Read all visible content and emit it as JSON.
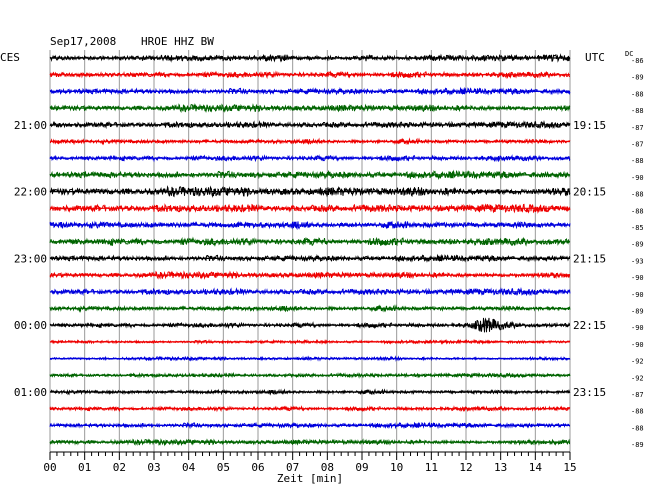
{
  "header": {
    "date": "Sep17,2008",
    "station": "HROE HHZ BW",
    "left_zone": "CES",
    "right_zone": "UTC",
    "dc_label": "DC"
  },
  "chart_data": {
    "type": "line",
    "title": "Sep17,2008  HROE HHZ BW",
    "xlabel": "Zeit [min]",
    "x_ticks": [
      "00",
      "01",
      "02",
      "03",
      "04",
      "05",
      "06",
      "07",
      "08",
      "09",
      "10",
      "11",
      "12",
      "13",
      "14",
      "15"
    ],
    "xlim": [
      0,
      15
    ],
    "grid": true,
    "trace_colors": [
      "#000000",
      "#ee0000",
      "#0000dd",
      "#006400"
    ],
    "left_time_labels": [
      "21:00",
      "22:00",
      "23:00",
      "00:00",
      "01:00"
    ],
    "right_time_labels": [
      "19:15",
      "20:15",
      "21:15",
      "22:15",
      "23:15"
    ],
    "time_label_every_rows": 4,
    "rows": [
      {
        "dc": "-86",
        "amplitude": 2.2
      },
      {
        "dc": "-89",
        "amplitude": 2.0
      },
      {
        "dc": "-88",
        "amplitude": 2.0
      },
      {
        "dc": "-88",
        "amplitude": 2.2
      },
      {
        "dc": "-87",
        "amplitude": 2.0
      },
      {
        "dc": "-87",
        "amplitude": 1.8
      },
      {
        "dc": "-88",
        "amplitude": 1.8
      },
      {
        "dc": "-90",
        "amplitude": 2.4
      },
      {
        "dc": "-88",
        "amplitude": 3.0
      },
      {
        "dc": "-88",
        "amplitude": 2.6
      },
      {
        "dc": "-85",
        "amplitude": 2.8
      },
      {
        "dc": "-89",
        "amplitude": 2.6
      },
      {
        "dc": "-93",
        "amplitude": 2.0
      },
      {
        "dc": "-90",
        "amplitude": 2.0
      },
      {
        "dc": "-90",
        "amplitude": 2.0
      },
      {
        "dc": "-89",
        "amplitude": 2.0
      },
      {
        "dc": "-90",
        "amplitude": 1.6,
        "event": {
          "minute": 12.6,
          "amplitude": 6.5
        }
      },
      {
        "dc": "-90",
        "amplitude": 1.0
      },
      {
        "dc": "-92",
        "amplitude": 1.0
      },
      {
        "dc": "-92",
        "amplitude": 1.2
      },
      {
        "dc": "-87",
        "amplitude": 1.6
      },
      {
        "dc": "-88",
        "amplitude": 1.4
      },
      {
        "dc": "-88",
        "amplitude": 1.6
      },
      {
        "dc": "-89",
        "amplitude": 1.6
      }
    ]
  }
}
